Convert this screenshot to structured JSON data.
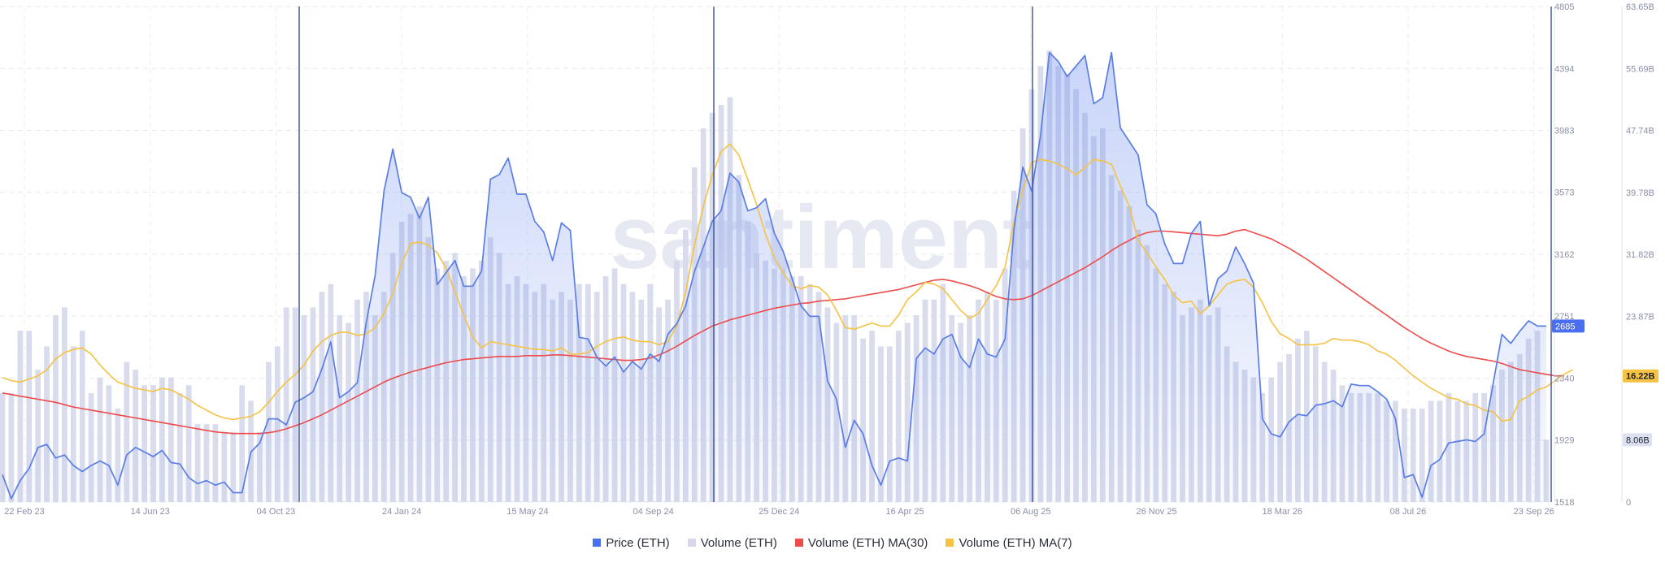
{
  "chart_data": {
    "type": "line",
    "watermark": "santiment",
    "x_tick_labels": [
      "22 Feb 23",
      "14 Jun 23",
      "04 Oct 23",
      "24 Jan 24",
      "15 May 24",
      "04 Sep 24",
      "25 Dec 24",
      "16 Apr 25",
      "06 Aug 25",
      "26 Nov 25",
      "18 Mar 26",
      "08 Jul 26",
      "23 Sep 26"
    ],
    "price_axis": {
      "ticks": [
        1518,
        1929,
        2340,
        2751,
        3162,
        3573,
        3983,
        4394,
        4805
      ],
      "range": [
        1518,
        4805
      ]
    },
    "volume_axis": {
      "ticks": [
        "0",
        "8.06B",
        "16.22B",
        "23.87B",
        "31.82B",
        "39.78B",
        "47.74B",
        "55.69B",
        "63.65B"
      ],
      "range": [
        0,
        63.65
      ]
    },
    "current_labels": {
      "price": "2685",
      "volume_ma30": "16.22B",
      "volume": "8.06B"
    },
    "colors": {
      "price": "#5b7ee5",
      "volume": "#d5d8ea",
      "ma30": "#ee4b4b",
      "ma7": "#f5c242",
      "axis_text": "#8a90a8"
    },
    "grid": true,
    "legend_position": "bottom",
    "series": [
      {
        "name": "Price (ETH)",
        "values": [
          1700,
          1540,
          1660,
          1740,
          1880,
          1900,
          1810,
          1830,
          1760,
          1720,
          1760,
          1790,
          1760,
          1630,
          1830,
          1880,
          1850,
          1820,
          1860,
          1780,
          1770,
          1680,
          1640,
          1660,
          1630,
          1650,
          1580,
          1580,
          1850,
          1910,
          2070,
          2070,
          2030,
          2180,
          2210,
          2250,
          2400,
          2580,
          2210,
          2250,
          2310,
          2710,
          3020,
          3580,
          3860,
          3570,
          3540,
          3400,
          3540,
          2960,
          3040,
          3120,
          2950,
          2950,
          3050,
          3660,
          3690,
          3800,
          3560,
          3560,
          3380,
          3310,
          3120,
          3370,
          3320,
          2610,
          2600,
          2480,
          2420,
          2480,
          2380,
          2450,
          2400,
          2500,
          2450,
          2630,
          2700,
          2820,
          3050,
          3210,
          3380,
          3450,
          3700,
          3640,
          3450,
          3470,
          3530,
          3300,
          3180,
          3000,
          2820,
          2750,
          2750,
          2320,
          2200,
          1880,
          2060,
          1970,
          1760,
          1630,
          1790,
          1810,
          1790,
          2470,
          2540,
          2500,
          2600,
          2630,
          2480,
          2410,
          2600,
          2500,
          2480,
          2600,
          3330,
          3740,
          3580,
          3950,
          4500,
          4440,
          4340,
          4410,
          4480,
          4160,
          4200,
          4500,
          4000,
          3910,
          3820,
          3490,
          3430,
          3230,
          3100,
          3100,
          3300,
          3380,
          2820,
          3000,
          3050,
          3210,
          3100,
          2970,
          2070,
          1970,
          1950,
          2050,
          2100,
          2090,
          2160,
          2170,
          2190,
          2150,
          2300,
          2290,
          2290,
          2250,
          2200,
          2070,
          1680,
          1700,
          1550,
          1760,
          1800,
          1910,
          1920,
          1930,
          1920,
          1970,
          2300,
          2630,
          2570,
          2650,
          2720,
          2685,
          2685
        ]
      },
      {
        "name": "Volume (ETH)",
        "values": [
          14,
          14,
          22,
          22,
          17,
          20,
          24,
          25,
          20,
          22,
          14,
          16,
          15,
          12,
          18,
          17,
          15,
          15,
          16,
          16,
          14,
          15,
          10,
          10,
          10,
          9,
          9,
          15,
          13,
          9,
          18,
          20,
          25,
          25,
          24,
          25,
          27,
          28,
          24,
          23,
          26,
          27,
          24,
          27,
          32,
          36,
          37,
          38,
          34,
          30,
          31,
          32,
          29,
          30,
          31,
          34,
          32,
          28,
          29,
          28,
          27,
          28,
          26,
          27,
          26,
          28,
          28,
          27,
          29,
          30,
          28,
          27,
          26,
          28,
          25,
          26,
          31,
          35,
          43,
          48,
          50,
          51,
          52,
          42,
          36,
          32,
          31,
          30,
          30,
          29,
          29,
          28,
          27,
          25,
          23,
          24,
          24,
          21,
          22,
          20,
          20,
          22,
          23,
          24,
          26,
          26,
          28,
          24,
          23,
          24,
          26,
          27,
          26,
          30,
          40,
          48,
          53,
          56,
          58,
          56,
          55,
          53,
          50,
          47,
          48,
          42,
          40,
          38,
          35,
          33,
          30,
          28,
          27,
          24,
          25,
          26,
          24,
          25,
          20,
          18,
          17,
          16,
          14,
          16,
          18,
          19,
          21,
          22,
          20,
          18,
          17,
          15,
          14,
          14,
          14,
          14,
          13,
          13,
          12,
          12,
          12,
          13,
          13,
          14,
          13,
          13,
          14,
          14,
          15,
          17,
          18,
          19,
          21,
          22,
          8
        ]
      },
      {
        "name": "Volume (ETH) MA(30)",
        "values": [
          14,
          13.8,
          13.6,
          13.4,
          13.2,
          13,
          12.8,
          12.5,
          12.2,
          12,
          11.8,
          11.6,
          11.4,
          11.2,
          11,
          10.8,
          10.6,
          10.4,
          10.2,
          10,
          9.8,
          9.6,
          9.4,
          9.2,
          9,
          8.9,
          8.8,
          8.8,
          8.8,
          8.8,
          8.9,
          9.1,
          9.4,
          9.8,
          10.2,
          10.7,
          11.2,
          11.8,
          12.4,
          13,
          13.6,
          14.2,
          14.8,
          15.4,
          15.9,
          16.3,
          16.7,
          17,
          17.3,
          17.6,
          17.9,
          18.1,
          18.3,
          18.4,
          18.5,
          18.6,
          18.7,
          18.7,
          18.7,
          18.8,
          18.8,
          18.8,
          18.9,
          18.9,
          18.8,
          18.7,
          18.6,
          18.5,
          18.4,
          18.3,
          18.2,
          18.2,
          18.3,
          18.5,
          18.9,
          19.4,
          20,
          20.7,
          21.4,
          22,
          22.6,
          23,
          23.4,
          23.7,
          24,
          24.3,
          24.6,
          24.9,
          25.1,
          25.3,
          25.5,
          25.6,
          25.8,
          25.9,
          26,
          26.1,
          26.3,
          26.5,
          26.7,
          26.9,
          27.1,
          27.3,
          27.6,
          27.9,
          28.2,
          28.5,
          28.6,
          28.4,
          28.1,
          27.8,
          27.4,
          26.9,
          26.4,
          26.1,
          26,
          26.1,
          26.5,
          27.1,
          27.7,
          28.3,
          28.9,
          29.5,
          30.1,
          30.8,
          31.5,
          32.3,
          33,
          33.6,
          34.2,
          34.6,
          34.8,
          34.8,
          34.7,
          34.6,
          34.5,
          34.4,
          34.3,
          34.2,
          34.4,
          34.8,
          35,
          34.6,
          34.2,
          33.8,
          33.2,
          32.6,
          31.9,
          31.2,
          30.4,
          29.6,
          28.8,
          28,
          27.2,
          26.4,
          25.6,
          24.8,
          24,
          23.2,
          22.4,
          21.7,
          21,
          20.4,
          19.9,
          19.4,
          19,
          18.7,
          18.5,
          18.3,
          18.1,
          17.8,
          17.4,
          17,
          16.8,
          16.6,
          16.4,
          16.2,
          16.2
        ]
      },
      {
        "name": "Volume (ETH) MA(7)",
        "values": [
          16,
          15.6,
          15.4,
          15.8,
          16.2,
          17,
          18.4,
          19.2,
          19.6,
          19.8,
          19,
          17.6,
          16.4,
          15.4,
          15,
          14.6,
          14.4,
          14.2,
          14.6,
          14.4,
          13.8,
          13.2,
          12.4,
          11.8,
          11.2,
          10.8,
          10.6,
          10.8,
          11,
          11.6,
          12.8,
          14.2,
          15.4,
          16.4,
          17.6,
          19.4,
          20.6,
          21.4,
          21.8,
          21.8,
          21.4,
          21.6,
          22.4,
          24.2,
          26.8,
          30.6,
          33.2,
          33.4,
          33,
          32,
          30,
          27,
          24,
          21.2,
          19.8,
          20.6,
          20.4,
          20.2,
          20,
          19.8,
          19.6,
          19.6,
          19.4,
          19.8,
          19,
          19,
          19.2,
          20,
          20.6,
          21,
          21.2,
          20.8,
          20.6,
          20.6,
          20.2,
          20.6,
          22.6,
          27,
          33,
          38,
          42,
          45,
          46,
          44.6,
          41.4,
          38.2,
          34.4,
          31.4,
          29.4,
          27.8,
          27.4,
          27.8,
          27.6,
          26.6,
          24.6,
          22.4,
          22.2,
          22.6,
          23,
          22.6,
          22.6,
          24,
          26,
          27,
          28.2,
          28,
          27.4,
          26,
          24.6,
          23.6,
          24.2,
          26,
          27.8,
          30.2,
          36,
          40,
          43.6,
          44,
          43.8,
          43.4,
          42.8,
          42,
          43,
          44,
          43.8,
          43.4,
          40.6,
          38,
          33.6,
          32,
          30.2,
          28.6,
          26.6,
          25.6,
          25.8,
          24.2,
          25.2,
          26.6,
          28,
          28.4,
          28.6,
          27.6,
          25.6,
          23.2,
          21.6,
          21,
          20.2,
          20.2,
          20.2,
          20.4,
          21,
          20.8,
          20.8,
          20.6,
          20.2,
          19.4,
          19,
          18.2,
          17.2,
          16.2,
          15.4,
          14.6,
          14,
          13.4,
          13.2,
          12.6,
          12.4,
          11.8,
          11.6,
          10.4,
          10.6,
          13,
          13.6,
          14.4,
          14.8,
          15.6,
          16.4,
          17
        ]
      }
    ],
    "event_markers_x": [
      "Oct 23",
      "Oct 24",
      "Jul 25",
      "Sep 26"
    ]
  }
}
